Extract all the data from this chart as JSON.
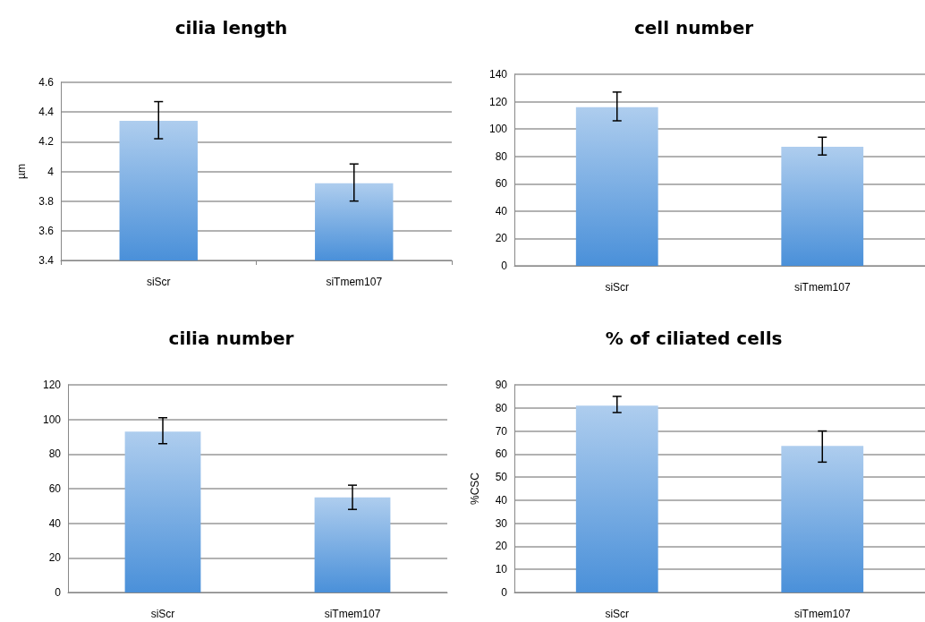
{
  "chart_data": [
    {
      "type": "bar",
      "title": "cilia length",
      "ylabel": "µm",
      "categories": [
        "siScr",
        "siTmem107"
      ],
      "values": [
        4.34,
        3.92
      ],
      "errors": [
        [
          4.22,
          4.47
        ],
        [
          3.8,
          4.05
        ]
      ],
      "color": "#4a90d9",
      "ylim": [
        3.4,
        4.6
      ],
      "yticks": [
        3.4,
        3.6,
        3.8,
        {
          "value": 4,
          "label": "4"
        },
        4.2,
        4.4,
        4.6
      ],
      "grid": "y"
    },
    {
      "type": "bar",
      "title": "cell number",
      "categories": [
        "siScr",
        "siTmem107"
      ],
      "values": [
        116,
        87
      ],
      "errors": [
        [
          106,
          127
        ],
        [
          81,
          94
        ]
      ],
      "color": "#4a90d9",
      "ylim": [
        0,
        140
      ],
      "yticks": [
        0,
        20,
        40,
        60,
        80,
        100,
        120,
        140
      ],
      "grid": "y"
    },
    {
      "type": "bar",
      "title": "cilia number",
      "categories": [
        "siScr",
        "siTmem107"
      ],
      "values": [
        93,
        55
      ],
      "errors": [
        [
          86,
          101
        ],
        [
          48,
          62
        ]
      ],
      "color": "#4a90d9",
      "ylim": [
        0,
        120
      ],
      "yticks": [
        0,
        20,
        40,
        60,
        80,
        100,
        120
      ],
      "grid": "y"
    },
    {
      "type": "bar",
      "title": "% of ciliated cells",
      "ylabel": "%CSC",
      "categories": [
        "siScr",
        "siTmem107"
      ],
      "values": [
        81,
        63.5
      ],
      "errors": [
        [
          78,
          85
        ],
        [
          56.5,
          70
        ]
      ],
      "color": "#4a90d9",
      "ylim": [
        0,
        90
      ],
      "yticks": [
        0,
        10,
        20,
        30,
        40,
        50,
        60,
        70,
        80,
        90
      ],
      "grid": "y"
    }
  ]
}
